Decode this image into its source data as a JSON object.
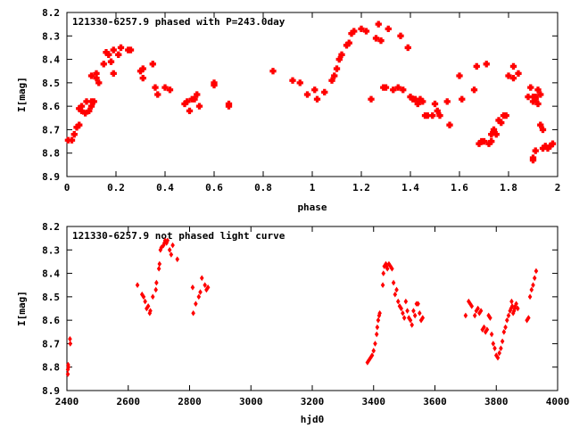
{
  "chart_data": [
    {
      "type": "scatter",
      "title": "121330-6257.9 phased with P=243.0day",
      "xlabel": "phase",
      "ylabel": "I[mag]",
      "xlim": [
        0,
        2
      ],
      "ylim": [
        8.2,
        8.9
      ],
      "y_inverted": true,
      "grid": false,
      "marker_color": "#ff0000",
      "marker": "filled-cross",
      "x_ticks": [
        0,
        0.2,
        0.4,
        0.6,
        0.8,
        1,
        1.2,
        1.4,
        1.6,
        1.8,
        2
      ],
      "x_tick_labels": [
        "0",
        "0.2",
        "0.4",
        "0.6",
        "0.8",
        "1",
        "1.2",
        "1.4",
        "1.6",
        "1.8",
        "2"
      ],
      "y_ticks": [
        8.2,
        8.3,
        8.4,
        8.5,
        8.6,
        8.7,
        8.8,
        8.9
      ],
      "y_tick_labels": [
        "8.2",
        "8.3",
        "8.4",
        "8.5",
        "8.6",
        "8.7",
        "8.8",
        "8.9"
      ],
      "series": [
        {
          "points": [
            [
              0.005,
              8.745
            ],
            [
              0.02,
              8.745
            ],
            [
              0.03,
              8.72
            ],
            [
              0.04,
              8.69
            ],
            [
              0.05,
              8.68
            ],
            [
              0.05,
              8.61
            ],
            [
              0.06,
              8.6
            ],
            [
              0.06,
              8.62
            ],
            [
              0.075,
              8.63
            ],
            [
              0.08,
              8.58
            ],
            [
              0.09,
              8.62
            ],
            [
              0.1,
              8.6
            ],
            [
              0.11,
              8.58
            ],
            [
              0.1,
              8.58
            ],
            [
              0.1,
              8.47
            ],
            [
              0.12,
              8.46
            ],
            [
              0.12,
              8.48
            ],
            [
              0.13,
              8.5
            ],
            [
              0.15,
              8.42
            ],
            [
              0.16,
              8.37
            ],
            [
              0.17,
              8.38
            ],
            [
              0.18,
              8.41
            ],
            [
              0.19,
              8.36
            ],
            [
              0.19,
              8.46
            ],
            [
              0.21,
              8.38
            ],
            [
              0.22,
              8.35
            ],
            [
              0.25,
              8.36
            ],
            [
              0.26,
              8.36
            ],
            [
              0.3,
              8.45
            ],
            [
              0.31,
              8.44
            ],
            [
              0.31,
              8.48
            ],
            [
              0.35,
              8.42
            ],
            [
              0.36,
              8.52
            ],
            [
              0.37,
              8.55
            ],
            [
              0.4,
              8.52
            ],
            [
              0.42,
              8.53
            ],
            [
              0.48,
              8.59
            ],
            [
              0.49,
              8.58
            ],
            [
              0.5,
              8.62
            ],
            [
              0.51,
              8.57
            ],
            [
              0.52,
              8.57
            ],
            [
              0.53,
              8.55
            ],
            [
              0.54,
              8.6
            ],
            [
              0.6,
              8.5
            ],
            [
              0.6,
              8.51
            ],
            [
              0.66,
              8.6
            ],
            [
              0.66,
              8.59
            ],
            [
              0.84,
              8.45
            ],
            [
              0.92,
              8.49
            ],
            [
              0.95,
              8.5
            ],
            [
              0.98,
              8.55
            ],
            [
              1.01,
              8.53
            ],
            [
              1.02,
              8.57
            ],
            [
              1.05,
              8.54
            ],
            [
              1.08,
              8.49
            ],
            [
              1.09,
              8.47
            ],
            [
              1.1,
              8.44
            ],
            [
              1.11,
              8.4
            ],
            [
              1.12,
              8.38
            ],
            [
              1.14,
              8.34
            ],
            [
              1.15,
              8.33
            ],
            [
              1.16,
              8.29
            ],
            [
              1.17,
              8.28
            ],
            [
              1.2,
              8.27
            ],
            [
              1.22,
              8.28
            ],
            [
              1.24,
              8.57
            ],
            [
              1.26,
              8.31
            ],
            [
              1.27,
              8.25
            ],
            [
              1.28,
              8.32
            ],
            [
              1.29,
              8.52
            ],
            [
              1.3,
              8.52
            ],
            [
              1.31,
              8.27
            ],
            [
              1.33,
              8.53
            ],
            [
              1.35,
              8.52
            ],
            [
              1.36,
              8.3
            ],
            [
              1.37,
              8.53
            ],
            [
              1.39,
              8.35
            ],
            [
              1.4,
              8.56
            ],
            [
              1.41,
              8.57
            ],
            [
              1.42,
              8.57
            ],
            [
              1.43,
              8.59
            ],
            [
              1.44,
              8.57
            ],
            [
              1.45,
              8.58
            ],
            [
              1.46,
              8.64
            ],
            [
              1.47,
              8.64
            ],
            [
              1.49,
              8.64
            ],
            [
              1.5,
              8.59
            ],
            [
              1.51,
              8.62
            ],
            [
              1.52,
              8.64
            ],
            [
              1.55,
              8.58
            ],
            [
              1.56,
              8.68
            ],
            [
              1.6,
              8.47
            ],
            [
              1.61,
              8.57
            ],
            [
              1.66,
              8.53
            ],
            [
              1.67,
              8.43
            ],
            [
              1.68,
              8.76
            ],
            [
              1.69,
              8.75
            ],
            [
              1.7,
              8.75
            ],
            [
              1.71,
              8.42
            ],
            [
              1.72,
              8.76
            ],
            [
              1.73,
              8.75
            ],
            [
              1.73,
              8.72
            ],
            [
              1.74,
              8.7
            ],
            [
              1.75,
              8.72
            ],
            [
              1.76,
              8.66
            ],
            [
              1.77,
              8.67
            ],
            [
              1.78,
              8.64
            ],
            [
              1.79,
              8.64
            ],
            [
              1.8,
              8.47
            ],
            [
              1.82,
              8.43
            ],
            [
              1.82,
              8.48
            ],
            [
              1.84,
              8.46
            ],
            [
              1.88,
              8.56
            ],
            [
              1.89,
              8.52
            ],
            [
              1.9,
              8.56
            ],
            [
              1.9,
              8.58
            ],
            [
              1.91,
              8.57
            ],
            [
              1.91,
              8.56
            ],
            [
              1.92,
              8.59
            ],
            [
              1.92,
              8.53
            ],
            [
              1.93,
              8.55
            ],
            [
              1.9,
              8.83
            ],
            [
              1.9,
              8.82
            ],
            [
              1.91,
              8.79
            ],
            [
              1.93,
              8.68
            ],
            [
              1.94,
              8.7
            ],
            [
              1.94,
              8.78
            ],
            [
              1.95,
              8.77
            ],
            [
              1.96,
              8.78
            ],
            [
              1.97,
              8.77
            ],
            [
              1.98,
              8.76
            ]
          ]
        }
      ]
    },
    {
      "type": "scatter",
      "title": "121330-6257.9 not phased light curve",
      "xlabel": "hjd0",
      "ylabel": "I[mag]",
      "xlim": [
        2400,
        4000
      ],
      "ylim": [
        8.2,
        8.9
      ],
      "y_inverted": true,
      "grid": false,
      "marker_color": "#ff0000",
      "marker": "small-diamond",
      "x_ticks": [
        2400,
        2600,
        2800,
        3000,
        3200,
        3400,
        3600,
        3800,
        4000
      ],
      "x_tick_labels": [
        "2400",
        "2600",
        "2800",
        "3000",
        "3200",
        "3400",
        "3600",
        "3800",
        "4000"
      ],
      "y_ticks": [
        8.2,
        8.3,
        8.4,
        8.5,
        8.6,
        8.7,
        8.8,
        8.9
      ],
      "y_tick_labels": [
        "8.2",
        "8.3",
        "8.4",
        "8.5",
        "8.6",
        "8.7",
        "8.8",
        "8.9"
      ],
      "series": [
        {
          "points": [
            [
              2403,
              8.83
            ],
            [
              2403,
              8.81
            ],
            [
              2404,
              8.79
            ],
            [
              2405,
              8.8
            ],
            [
              2410,
              8.68
            ],
            [
              2411,
              8.7
            ],
            [
              2630,
              8.45
            ],
            [
              2645,
              8.49
            ],
            [
              2650,
              8.5
            ],
            [
              2655,
              8.52
            ],
            [
              2660,
              8.55
            ],
            [
              2665,
              8.54
            ],
            [
              2670,
              8.57
            ],
            [
              2672,
              8.56
            ],
            [
              2680,
              8.5
            ],
            [
              2690,
              8.47
            ],
            [
              2692,
              8.44
            ],
            [
              2700,
              8.38
            ],
            [
              2702,
              8.36
            ],
            [
              2705,
              8.3
            ],
            [
              2708,
              8.29
            ],
            [
              2715,
              8.28
            ],
            [
              2718,
              8.27
            ],
            [
              2720,
              8.26
            ],
            [
              2725,
              8.27
            ],
            [
              2728,
              8.26
            ],
            [
              2735,
              8.3
            ],
            [
              2740,
              8.32
            ],
            [
              2745,
              8.28
            ],
            [
              2760,
              8.34
            ],
            [
              2810,
              8.46
            ],
            [
              2812,
              8.57
            ],
            [
              2820,
              8.53
            ],
            [
              2830,
              8.5
            ],
            [
              2835,
              8.48
            ],
            [
              2840,
              8.42
            ],
            [
              2850,
              8.45
            ],
            [
              2855,
              8.47
            ],
            [
              2860,
              8.46
            ],
            [
              3380,
              8.78
            ],
            [
              3385,
              8.77
            ],
            [
              3390,
              8.76
            ],
            [
              3395,
              8.75
            ],
            [
              3400,
              8.73
            ],
            [
              3405,
              8.7
            ],
            [
              3410,
              8.66
            ],
            [
              3412,
              8.63
            ],
            [
              3415,
              8.6
            ],
            [
              3418,
              8.58
            ],
            [
              3420,
              8.57
            ],
            [
              3430,
              8.45
            ],
            [
              3432,
              8.4
            ],
            [
              3435,
              8.37
            ],
            [
              3440,
              8.36
            ],
            [
              3442,
              8.37
            ],
            [
              3445,
              8.38
            ],
            [
              3450,
              8.36
            ],
            [
              3455,
              8.37
            ],
            [
              3460,
              8.38
            ],
            [
              3465,
              8.44
            ],
            [
              3470,
              8.49
            ],
            [
              3475,
              8.47
            ],
            [
              3480,
              8.52
            ],
            [
              3485,
              8.54
            ],
            [
              3490,
              8.55
            ],
            [
              3495,
              8.57
            ],
            [
              3500,
              8.59
            ],
            [
              3505,
              8.52
            ],
            [
              3510,
              8.56
            ],
            [
              3515,
              8.59
            ],
            [
              3520,
              8.6
            ],
            [
              3525,
              8.62
            ],
            [
              3530,
              8.56
            ],
            [
              3535,
              8.58
            ],
            [
              3540,
              8.53
            ],
            [
              3545,
              8.53
            ],
            [
              3550,
              8.57
            ],
            [
              3555,
              8.6
            ],
            [
              3560,
              8.59
            ],
            [
              3700,
              8.58
            ],
            [
              3710,
              8.52
            ],
            [
              3715,
              8.53
            ],
            [
              3720,
              8.54
            ],
            [
              3730,
              8.58
            ],
            [
              3735,
              8.56
            ],
            [
              3740,
              8.55
            ],
            [
              3745,
              8.57
            ],
            [
              3750,
              8.56
            ],
            [
              3755,
              8.64
            ],
            [
              3760,
              8.63
            ],
            [
              3765,
              8.65
            ],
            [
              3770,
              8.64
            ],
            [
              3775,
              8.58
            ],
            [
              3780,
              8.59
            ],
            [
              3785,
              8.66
            ],
            [
              3790,
              8.7
            ],
            [
              3795,
              8.72
            ],
            [
              3800,
              8.75
            ],
            [
              3805,
              8.76
            ],
            [
              3810,
              8.74
            ],
            [
              3815,
              8.72
            ],
            [
              3820,
              8.69
            ],
            [
              3825,
              8.65
            ],
            [
              3830,
              8.63
            ],
            [
              3835,
              8.6
            ],
            [
              3840,
              8.58
            ],
            [
              3845,
              8.56
            ],
            [
              3848,
              8.55
            ],
            [
              3850,
              8.52
            ],
            [
              3852,
              8.54
            ],
            [
              3855,
              8.57
            ],
            [
              3858,
              8.56
            ],
            [
              3860,
              8.55
            ],
            [
              3862,
              8.54
            ],
            [
              3865,
              8.53
            ],
            [
              3870,
              8.55
            ],
            [
              3900,
              8.6
            ],
            [
              3905,
              8.59
            ],
            [
              3910,
              8.5
            ],
            [
              3915,
              8.47
            ],
            [
              3920,
              8.45
            ],
            [
              3925,
              8.42
            ],
            [
              3930,
              8.39
            ]
          ]
        }
      ]
    }
  ]
}
